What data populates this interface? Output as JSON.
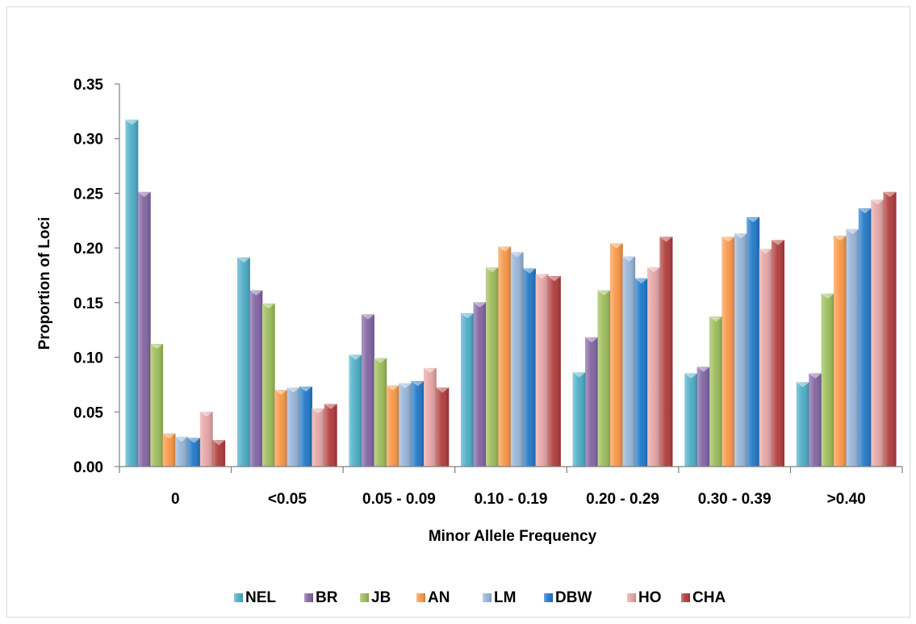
{
  "chart_data": {
    "type": "bar",
    "title": "",
    "xlabel": "Minor Allele Frequency",
    "ylabel": "Proportion of Loci",
    "ylim": [
      0,
      0.35
    ],
    "yticks": [
      "0.00",
      "0.05",
      "0.10",
      "0.15",
      "0.20",
      "0.25",
      "0.30",
      "0.35"
    ],
    "categories": [
      "0",
      "<0.05",
      "0.05 - 0.09",
      "0.10 - 0.19",
      "0.20 - 0.29",
      "0.30 - 0.39",
      ">0.40"
    ],
    "legend_position": "bottom",
    "grid": false,
    "series": [
      {
        "name": "NEL",
        "color": "#4bacc6",
        "values": [
          0.317,
          0.191,
          0.102,
          0.14,
          0.086,
          0.085,
          0.077
        ]
      },
      {
        "name": "BR",
        "color": "#8064a2",
        "values": [
          0.251,
          0.161,
          0.139,
          0.15,
          0.118,
          0.091,
          0.085
        ]
      },
      {
        "name": "JB",
        "color": "#9bbb59",
        "values": [
          0.112,
          0.149,
          0.099,
          0.182,
          0.161,
          0.137,
          0.158
        ]
      },
      {
        "name": "AN",
        "color": "#f79646",
        "values": [
          0.03,
          0.07,
          0.074,
          0.201,
          0.204,
          0.21,
          0.211
        ]
      },
      {
        "name": "LM",
        "color": "#95b3d7",
        "values": [
          0.027,
          0.072,
          0.076,
          0.196,
          0.192,
          0.213,
          0.217
        ]
      },
      {
        "name": "DBW",
        "color": "#1f78c8",
        "values": [
          0.026,
          0.073,
          0.078,
          0.181,
          0.172,
          0.228,
          0.236
        ]
      },
      {
        "name": "HO",
        "color": "#e6a4a4",
        "values": [
          0.05,
          0.053,
          0.09,
          0.176,
          0.182,
          0.199,
          0.244
        ]
      },
      {
        "name": "CHA",
        "color": "#b03a3a",
        "values": [
          0.024,
          0.057,
          0.072,
          0.174,
          0.21,
          0.207,
          0.251
        ]
      }
    ]
  }
}
